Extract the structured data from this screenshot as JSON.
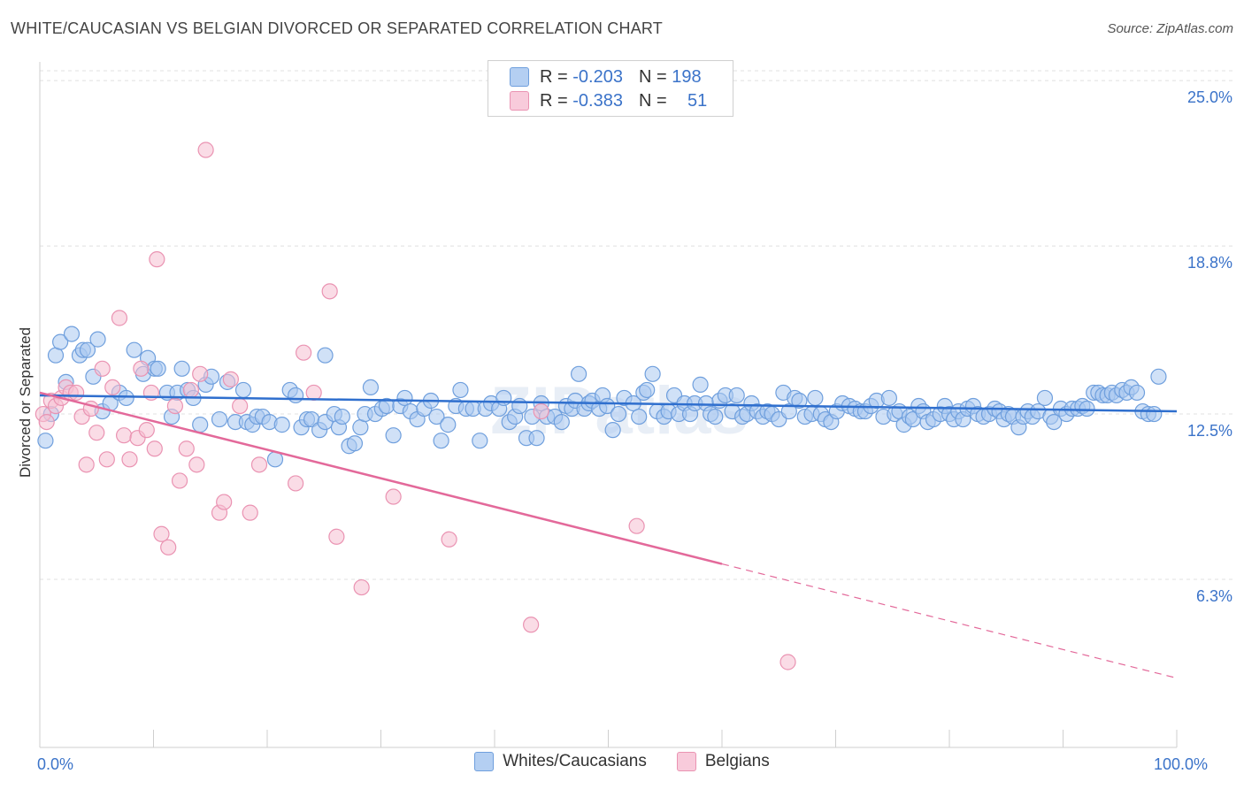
{
  "header": {
    "title": "WHITE/CAUCASIAN VS BELGIAN DIVORCED OR SEPARATED CORRELATION CHART",
    "source": "Source: ZipAtlas.com"
  },
  "legend": {
    "rows": [
      {
        "r_label": "R = ",
        "r_value": "-0.203",
        "n_label": "N = ",
        "n_value": "198"
      },
      {
        "r_label": "R = ",
        "r_value": "-0.383",
        "n_label": "N = ",
        "n_value": "51"
      }
    ]
  },
  "colors": {
    "blue_fill": "#a9c8f0",
    "blue_stroke": "#6f9fdd",
    "blue_line": "#2f6fce",
    "pink_fill": "#f6bfd1",
    "pink_stroke": "#ea93b2",
    "pink_line": "#e3699a",
    "tick_label": "#3b73c9"
  },
  "chart_data": {
    "type": "scatter",
    "ylabel": "Divorced or Separated",
    "xlim": [
      0,
      100
    ],
    "ylim": [
      0,
      25.7
    ],
    "y_ticks": [
      {
        "value": 25.0,
        "label": "25.0%"
      },
      {
        "value": 18.8,
        "label": "18.8%"
      },
      {
        "value": 12.5,
        "label": "12.5%"
      },
      {
        "value": 6.3,
        "label": "6.3%"
      }
    ],
    "x_tick_labels": [
      {
        "value": 0,
        "label": "0.0%"
      },
      {
        "value": 100,
        "label": "100.0%"
      }
    ],
    "x_minor_ticks": [
      0,
      10,
      20,
      30,
      40,
      50,
      60,
      70,
      80,
      90,
      100
    ],
    "grid": "horizontal-dashed",
    "legend_position": "top-center",
    "watermark": "ZIPatlas",
    "series": [
      {
        "name": "Whites/Caucasians",
        "color": "blue",
        "trend": {
          "x0": 0,
          "y0": 13.2,
          "x1": 100,
          "y1": 12.6,
          "dashed_from": null
        },
        "points": [
          [
            0.5,
            11.5
          ],
          [
            1,
            12.5
          ],
          [
            1.4,
            14.7
          ],
          [
            1.8,
            15.2
          ],
          [
            2.3,
            13.7
          ],
          [
            2.8,
            15.5
          ],
          [
            3.5,
            14.7
          ],
          [
            3.8,
            14.9
          ],
          [
            4.2,
            14.9
          ],
          [
            4.7,
            13.9
          ],
          [
            5.1,
            15.3
          ],
          [
            5.5,
            12.6
          ],
          [
            6.2,
            12.9
          ],
          [
            7,
            13.3
          ],
          [
            7.6,
            13.1
          ],
          [
            8.3,
            14.9
          ],
          [
            9.1,
            14.0
          ],
          [
            9.5,
            14.6
          ],
          [
            10.1,
            14.2
          ],
          [
            10.4,
            14.2
          ],
          [
            11.2,
            13.3
          ],
          [
            11.6,
            12.4
          ],
          [
            12.1,
            13.3
          ],
          [
            12.5,
            14.2
          ],
          [
            13.0,
            13.4
          ],
          [
            13.5,
            13.1
          ],
          [
            14.1,
            12.1
          ],
          [
            14.6,
            13.6
          ],
          [
            15.1,
            13.9
          ],
          [
            15.8,
            12.3
          ],
          [
            16.5,
            13.7
          ],
          [
            17.2,
            12.2
          ],
          [
            17.9,
            13.4
          ],
          [
            18.2,
            12.2
          ],
          [
            18.7,
            12.1
          ],
          [
            19.1,
            12.4
          ],
          [
            19.6,
            12.4
          ],
          [
            20.2,
            12.2
          ],
          [
            20.7,
            10.8
          ],
          [
            21.3,
            12.1
          ],
          [
            22.0,
            13.4
          ],
          [
            22.5,
            13.2
          ],
          [
            23.0,
            12.0
          ],
          [
            23.5,
            12.3
          ],
          [
            23.9,
            12.3
          ],
          [
            24.6,
            11.9
          ],
          [
            25.1,
            12.2
          ],
          [
            25.1,
            14.7
          ],
          [
            25.9,
            12.5
          ],
          [
            26.3,
            12.0
          ],
          [
            26.6,
            12.4
          ],
          [
            27.2,
            11.3
          ],
          [
            27.7,
            11.4
          ],
          [
            28.2,
            12.0
          ],
          [
            28.6,
            12.5
          ],
          [
            29.1,
            13.5
          ],
          [
            29.5,
            12.5
          ],
          [
            30.1,
            12.7
          ],
          [
            30.5,
            12.8
          ],
          [
            31.1,
            11.7
          ],
          [
            31.7,
            12.8
          ],
          [
            32.1,
            13.1
          ],
          [
            32.6,
            12.6
          ],
          [
            33.2,
            12.3
          ],
          [
            33.8,
            12.7
          ],
          [
            34.4,
            13.0
          ],
          [
            34.9,
            12.4
          ],
          [
            35.3,
            11.5
          ],
          [
            35.9,
            12.1
          ],
          [
            36.6,
            12.8
          ],
          [
            37.0,
            13.4
          ],
          [
            37.5,
            12.7
          ],
          [
            38.1,
            12.7
          ],
          [
            38.7,
            11.5
          ],
          [
            39.2,
            12.7
          ],
          [
            39.7,
            12.9
          ],
          [
            40.4,
            12.7
          ],
          [
            40.8,
            13.1
          ],
          [
            41.3,
            12.2
          ],
          [
            41.8,
            12.4
          ],
          [
            42.2,
            12.8
          ],
          [
            42.8,
            11.6
          ],
          [
            43.3,
            12.4
          ],
          [
            43.7,
            11.6
          ],
          [
            44.1,
            12.9
          ],
          [
            44.6,
            12.4
          ],
          [
            45.3,
            12.4
          ],
          [
            45.9,
            12.2
          ],
          [
            46.3,
            12.8
          ],
          [
            46.8,
            12.7
          ],
          [
            47.1,
            13.0
          ],
          [
            47.4,
            14.0
          ],
          [
            47.9,
            12.7
          ],
          [
            48.3,
            12.9
          ],
          [
            48.6,
            13.0
          ],
          [
            49.2,
            12.7
          ],
          [
            49.5,
            13.2
          ],
          [
            49.9,
            12.8
          ],
          [
            50.4,
            11.9
          ],
          [
            50.9,
            12.5
          ],
          [
            51.4,
            13.1
          ],
          [
            52.2,
            12.9
          ],
          [
            52.7,
            12.4
          ],
          [
            53.1,
            13.3
          ],
          [
            53.4,
            13.4
          ],
          [
            53.9,
            14.0
          ],
          [
            54.3,
            12.6
          ],
          [
            54.9,
            12.4
          ],
          [
            55.3,
            12.6
          ],
          [
            55.8,
            13.2
          ],
          [
            56.2,
            12.5
          ],
          [
            56.7,
            12.9
          ],
          [
            57.2,
            12.5
          ],
          [
            57.6,
            12.9
          ],
          [
            58.1,
            13.6
          ],
          [
            58.6,
            12.9
          ],
          [
            59.0,
            12.5
          ],
          [
            59.4,
            12.4
          ],
          [
            59.8,
            13.0
          ],
          [
            60.3,
            13.2
          ],
          [
            60.9,
            12.6
          ],
          [
            61.3,
            13.2
          ],
          [
            61.8,
            12.4
          ],
          [
            62.2,
            12.5
          ],
          [
            62.6,
            12.9
          ],
          [
            63.1,
            12.6
          ],
          [
            63.6,
            12.4
          ],
          [
            64.0,
            12.6
          ],
          [
            64.4,
            12.5
          ],
          [
            65.0,
            12.3
          ],
          [
            65.4,
            13.3
          ],
          [
            65.9,
            12.6
          ],
          [
            66.4,
            13.1
          ],
          [
            66.8,
            13.0
          ],
          [
            67.3,
            12.4
          ],
          [
            67.9,
            12.5
          ],
          [
            68.2,
            13.1
          ],
          [
            68.7,
            12.5
          ],
          [
            69.1,
            12.3
          ],
          [
            69.6,
            12.2
          ],
          [
            70.1,
            12.6
          ],
          [
            70.6,
            12.9
          ],
          [
            71.2,
            12.8
          ],
          [
            71.7,
            12.7
          ],
          [
            72.2,
            12.6
          ],
          [
            72.6,
            12.6
          ],
          [
            73.1,
            12.8
          ],
          [
            73.6,
            13.0
          ],
          [
            74.2,
            12.4
          ],
          [
            74.7,
            13.1
          ],
          [
            75.2,
            12.5
          ],
          [
            75.6,
            12.6
          ],
          [
            76.0,
            12.1
          ],
          [
            76.5,
            12.4
          ],
          [
            76.8,
            12.3
          ],
          [
            77.3,
            12.8
          ],
          [
            77.7,
            12.6
          ],
          [
            78.1,
            12.2
          ],
          [
            78.6,
            12.3
          ],
          [
            79.2,
            12.5
          ],
          [
            79.6,
            12.8
          ],
          [
            80.0,
            12.5
          ],
          [
            80.4,
            12.3
          ],
          [
            80.8,
            12.6
          ],
          [
            81.2,
            12.3
          ],
          [
            81.6,
            12.7
          ],
          [
            82.1,
            12.8
          ],
          [
            82.5,
            12.5
          ],
          [
            83.0,
            12.4
          ],
          [
            83.5,
            12.5
          ],
          [
            84.0,
            12.7
          ],
          [
            84.4,
            12.6
          ],
          [
            84.8,
            12.3
          ],
          [
            85.2,
            12.5
          ],
          [
            85.6,
            12.4
          ],
          [
            86.1,
            12.0
          ],
          [
            86.5,
            12.4
          ],
          [
            86.9,
            12.6
          ],
          [
            87.3,
            12.4
          ],
          [
            87.8,
            12.6
          ],
          [
            88.4,
            13.1
          ],
          [
            88.9,
            12.4
          ],
          [
            89.2,
            12.2
          ],
          [
            89.8,
            12.7
          ],
          [
            90.3,
            12.5
          ],
          [
            90.8,
            12.7
          ],
          [
            91.3,
            12.7
          ],
          [
            91.7,
            12.8
          ],
          [
            92.1,
            12.7
          ],
          [
            92.7,
            13.3
          ],
          [
            93.1,
            13.3
          ],
          [
            93.5,
            13.2
          ],
          [
            93.9,
            13.2
          ],
          [
            94.3,
            13.3
          ],
          [
            94.7,
            13.2
          ],
          [
            95.2,
            13.4
          ],
          [
            95.6,
            13.3
          ],
          [
            96.0,
            13.5
          ],
          [
            96.5,
            13.3
          ],
          [
            97.0,
            12.6
          ],
          [
            97.5,
            12.5
          ],
          [
            98.0,
            12.5
          ],
          [
            98.4,
            13.9
          ]
        ]
      },
      {
        "name": "Belgians",
        "color": "pink",
        "trend": {
          "x0": 0,
          "y0": 13.3,
          "x1": 100,
          "y1": 2.6,
          "dashed_from": 60
        },
        "points": [
          [
            0.3,
            12.5
          ],
          [
            0.6,
            12.2
          ],
          [
            1.0,
            13.0
          ],
          [
            1.4,
            12.8
          ],
          [
            1.9,
            13.1
          ],
          [
            2.3,
            13.5
          ],
          [
            2.7,
            13.3
          ],
          [
            3.2,
            13.3
          ],
          [
            3.7,
            12.4
          ],
          [
            4.1,
            10.6
          ],
          [
            4.5,
            12.7
          ],
          [
            5.0,
            11.8
          ],
          [
            5.5,
            14.2
          ],
          [
            5.9,
            10.8
          ],
          [
            6.4,
            13.5
          ],
          [
            7.0,
            16.1
          ],
          [
            7.4,
            11.7
          ],
          [
            7.9,
            10.8
          ],
          [
            8.6,
            11.6
          ],
          [
            8.9,
            14.2
          ],
          [
            9.4,
            11.9
          ],
          [
            9.8,
            13.3
          ],
          [
            10.1,
            11.2
          ],
          [
            10.3,
            18.3
          ],
          [
            10.7,
            8.0
          ],
          [
            11.3,
            7.5
          ],
          [
            11.9,
            12.8
          ],
          [
            12.3,
            10.0
          ],
          [
            12.9,
            11.2
          ],
          [
            13.3,
            13.4
          ],
          [
            13.8,
            10.6
          ],
          [
            14.1,
            14.0
          ],
          [
            14.6,
            22.4
          ],
          [
            15.8,
            8.8
          ],
          [
            16.2,
            9.2
          ],
          [
            16.8,
            13.8
          ],
          [
            17.6,
            12.8
          ],
          [
            18.5,
            8.8
          ],
          [
            19.3,
            10.6
          ],
          [
            22.5,
            9.9
          ],
          [
            23.2,
            14.8
          ],
          [
            24.1,
            13.3
          ],
          [
            25.5,
            17.1
          ],
          [
            26.1,
            7.9
          ],
          [
            28.3,
            6.0
          ],
          [
            31.1,
            9.4
          ],
          [
            36.0,
            7.8
          ],
          [
            43.2,
            4.6
          ],
          [
            44.1,
            12.6
          ],
          [
            52.5,
            8.3
          ],
          [
            65.8,
            3.2
          ]
        ]
      }
    ]
  }
}
